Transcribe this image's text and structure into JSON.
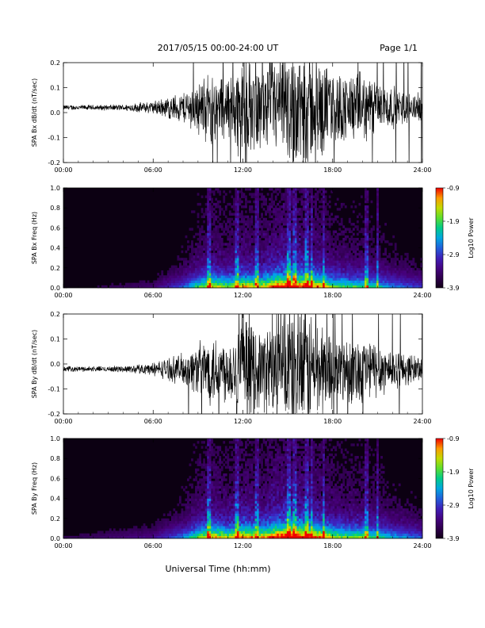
{
  "page": {
    "title": "2017/05/15  00:00-24:00 UT",
    "page_label": "Page 1/1",
    "xlabel": "Universal Time (hh:mm)"
  },
  "chart_data": [
    {
      "type": "line",
      "ylabel": "SPA Bx dB/dt (nT/sec)",
      "xlim": [
        0,
        24
      ],
      "ylim": [
        -0.2,
        0.2
      ],
      "x_ticks": [
        "00:00",
        "06:00",
        "12:00",
        "18:00",
        "24:00"
      ],
      "y_ticks": [
        "-0.2",
        "-0.1",
        "0.0",
        "0.1",
        "0.2"
      ],
      "envelope_hours": [
        0,
        2,
        4,
        6,
        8,
        9,
        10,
        11,
        12,
        13,
        14,
        15,
        16,
        17,
        18,
        19,
        20,
        21,
        22,
        23,
        24
      ],
      "envelope_amplitude": [
        0.01,
        0.01,
        0.012,
        0.025,
        0.06,
        0.1,
        0.14,
        0.12,
        0.2,
        0.15,
        0.18,
        0.22,
        0.25,
        0.2,
        0.14,
        0.13,
        0.13,
        0.11,
        0.08,
        0.06,
        0.05
      ],
      "offset": 0.02
    },
    {
      "type": "heatmap",
      "ylabel": "SPA Bx Freq (Hz)",
      "xlim": [
        0,
        24
      ],
      "ylim": [
        0,
        1.0
      ],
      "x_ticks": [
        "00:00",
        "06:00",
        "12:00",
        "18:00",
        "24:00"
      ],
      "y_ticks": [
        "0.0",
        "0.2",
        "0.4",
        "0.6",
        "0.8",
        "1.0"
      ],
      "colorbar_label": "Log10 Power",
      "colorbar_ticks": [
        "-0.9",
        "-1.9",
        "-2.9",
        "-3.9"
      ],
      "crange": [
        -3.9,
        -0.9
      ],
      "activity_hours": [
        0,
        6,
        8,
        9,
        10,
        11,
        12,
        13,
        14,
        15,
        16,
        17,
        18,
        19,
        20,
        21,
        22,
        24
      ],
      "activity_level": [
        0.05,
        0.12,
        0.3,
        0.5,
        0.65,
        0.55,
        0.7,
        0.6,
        0.75,
        0.85,
        0.8,
        0.72,
        0.55,
        0.5,
        0.5,
        0.45,
        0.35,
        0.25
      ],
      "bright_stripes_hours": [
        9.7,
        11.6,
        12.9,
        15.1,
        15.5,
        16.3,
        16.6,
        17.4,
        20.3,
        21.0
      ]
    },
    {
      "type": "line",
      "ylabel": "SPA By dB/dt (nT/sec)",
      "xlim": [
        0,
        24
      ],
      "ylim": [
        -0.2,
        0.2
      ],
      "x_ticks": [
        "00:00",
        "06:00",
        "12:00",
        "18:00",
        "24:00"
      ],
      "y_ticks": [
        "-0.2",
        "-0.1",
        "0.0",
        "0.1",
        "0.2"
      ],
      "envelope_hours": [
        0,
        2,
        4,
        6,
        8,
        9,
        10,
        11,
        12,
        13,
        14,
        15,
        16,
        17,
        18,
        19,
        20,
        21,
        22,
        23,
        24
      ],
      "envelope_amplitude": [
        0.01,
        0.01,
        0.012,
        0.025,
        0.06,
        0.1,
        0.14,
        0.12,
        0.2,
        0.15,
        0.18,
        0.22,
        0.25,
        0.2,
        0.14,
        0.13,
        0.13,
        0.11,
        0.08,
        0.06,
        0.05
      ],
      "offset": -0.02
    },
    {
      "type": "heatmap",
      "ylabel": "SPA By Freq (Hz)",
      "xlim": [
        0,
        24
      ],
      "ylim": [
        0,
        1.0
      ],
      "x_ticks": [
        "00:00",
        "06:00",
        "12:00",
        "18:00",
        "24:00"
      ],
      "y_ticks": [
        "0.0",
        "0.2",
        "0.4",
        "0.6",
        "0.8",
        "1.0"
      ],
      "colorbar_label": "Log10 Power",
      "colorbar_ticks": [
        "-0.9",
        "-1.9",
        "-2.9",
        "-3.9"
      ],
      "crange": [
        -3.9,
        -0.9
      ],
      "activity_hours": [
        0,
        6,
        8,
        9,
        10,
        11,
        12,
        13,
        14,
        15,
        16,
        17,
        18,
        19,
        20,
        21,
        22,
        24
      ],
      "activity_level": [
        0.08,
        0.16,
        0.35,
        0.55,
        0.7,
        0.6,
        0.75,
        0.65,
        0.8,
        0.9,
        0.85,
        0.75,
        0.6,
        0.55,
        0.55,
        0.5,
        0.4,
        0.3
      ],
      "bright_stripes_hours": [
        9.7,
        11.6,
        12.9,
        15.1,
        15.5,
        16.3,
        16.6,
        17.4,
        20.3,
        21.0
      ]
    }
  ]
}
